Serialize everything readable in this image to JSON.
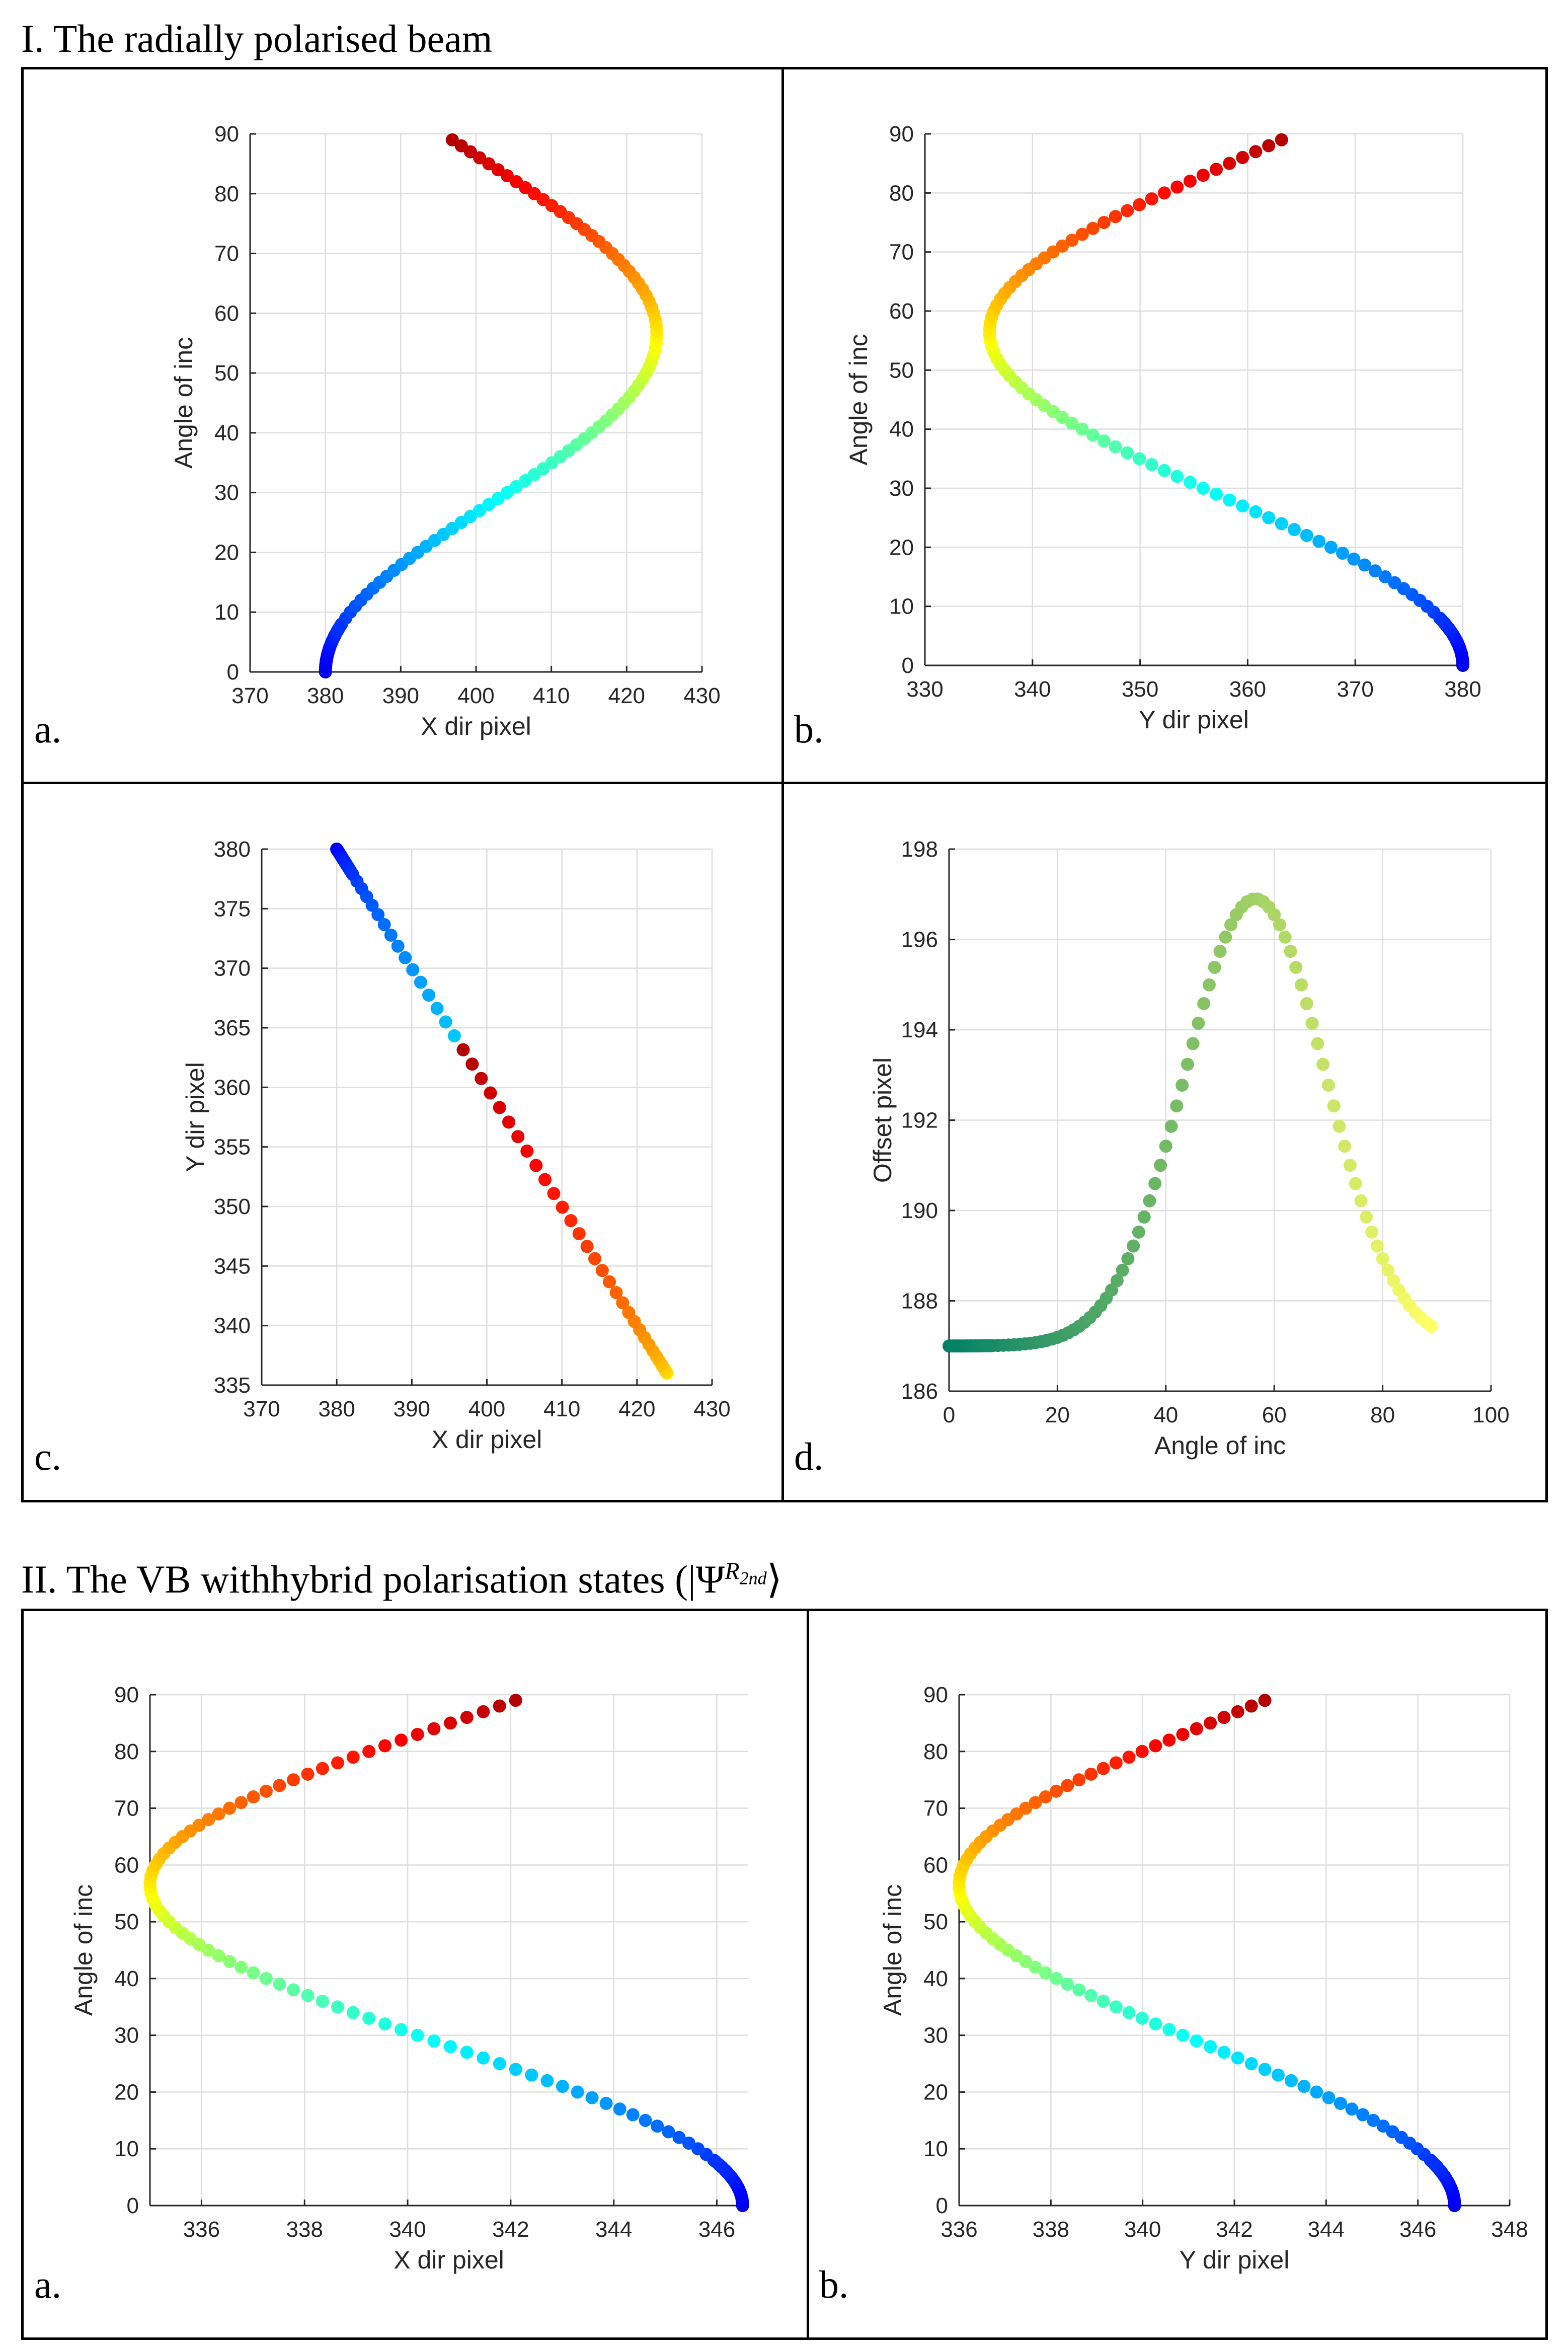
{
  "sections": [
    {
      "title": "I. The radially polarised beam"
    },
    {
      "title_prefix": "II. The VB withhybrid polarisation states (|Ψ",
      "title_sup": "R",
      "title_sub": "2nd",
      "title_suffix": "⟩"
    }
  ],
  "panel_labels": [
    "a.",
    "b.",
    "c.",
    "d.",
    "a.",
    "b."
  ],
  "chart_data": [
    {
      "id": "I-a",
      "type": "scatter",
      "title": "",
      "xlabel": "X dir pixel",
      "ylabel": "Angle of inc",
      "xlim": [
        370,
        430
      ],
      "ylim": [
        0,
        90
      ],
      "xticks": [
        370,
        380,
        390,
        400,
        410,
        420,
        430
      ],
      "yticks": [
        0,
        10,
        20,
        30,
        40,
        50,
        60,
        70,
        80,
        90
      ],
      "grid": true,
      "colormap": "jet",
      "model": {
        "x": "380 + 44*s(a)",
        "y": "a",
        "a_range": [
          0,
          89
        ]
      }
    },
    {
      "id": "I-b",
      "type": "scatter",
      "title": "",
      "xlabel": "Y dir pixel",
      "ylabel": "Angle of inc",
      "xlim": [
        330,
        380
      ],
      "ylim": [
        0,
        90
      ],
      "xticks": [
        330,
        340,
        350,
        360,
        370,
        380
      ],
      "yticks": [
        0,
        10,
        20,
        30,
        40,
        50,
        60,
        70,
        80,
        90
      ],
      "grid": true,
      "colormap": "jet",
      "model": {
        "x": "380 - 44*s(a)",
        "y": "a",
        "a_range": [
          0,
          89
        ]
      }
    },
    {
      "id": "I-c",
      "type": "scatter",
      "title": "",
      "xlabel": "X dir pixel",
      "ylabel": "Y dir pixel",
      "xlim": [
        370,
        430
      ],
      "ylim": [
        335,
        380
      ],
      "xticks": [
        370,
        380,
        390,
        400,
        410,
        420,
        430
      ],
      "yticks": [
        335,
        340,
        345,
        350,
        355,
        360,
        365,
        370,
        375,
        380
      ],
      "grid": true,
      "colormap": "jet",
      "model": {
        "x": "380 + 44*s(a)",
        "y": "380 - 44*s(a)",
        "a_range": [
          0,
          89
        ]
      }
    },
    {
      "id": "I-d",
      "type": "scatter",
      "title": "",
      "xlabel": "Angle of inc",
      "ylabel": "Offset pixel",
      "xlim": [
        0,
        100
      ],
      "ylim": [
        186,
        198
      ],
      "xticks": [
        0,
        20,
        40,
        60,
        80,
        100
      ],
      "yticks": [
        186,
        188,
        190,
        192,
        194,
        196,
        198
      ],
      "grid": true,
      "colormap": "summer",
      "model": {
        "x": "a",
        "y": "187 + 9.9*g(a)",
        "a_range": [
          0,
          89
        ]
      }
    },
    {
      "id": "II-a",
      "type": "scatter",
      "title": "",
      "xlabel": "X dir pixel",
      "ylabel": "Angle of inc",
      "xlim": [
        335,
        346.6
      ],
      "ylim": [
        0,
        90
      ],
      "xticks": [
        336,
        338,
        340,
        342,
        344,
        346
      ],
      "yticks": [
        0,
        10,
        20,
        30,
        40,
        50,
        60,
        70,
        80,
        90
      ],
      "grid": true,
      "colormap": "jet",
      "model": {
        "x": "346.5 - 11.5*s(a)",
        "y": "a",
        "a_range": [
          0,
          89
        ]
      }
    },
    {
      "id": "II-b",
      "type": "scatter",
      "title": "",
      "xlabel": "Y dir pixel",
      "ylabel": "Angle of inc",
      "xlim": [
        336,
        348
      ],
      "ylim": [
        0,
        90
      ],
      "xticks": [
        336,
        338,
        340,
        342,
        344,
        346,
        348
      ],
      "yticks": [
        0,
        10,
        20,
        30,
        40,
        50,
        60,
        70,
        80,
        90
      ],
      "grid": true,
      "colormap": "jet",
      "model": {
        "x": "346.8 - 10.8*s(a)",
        "y": "a",
        "a_range": [
          0,
          89
        ]
      }
    }
  ]
}
